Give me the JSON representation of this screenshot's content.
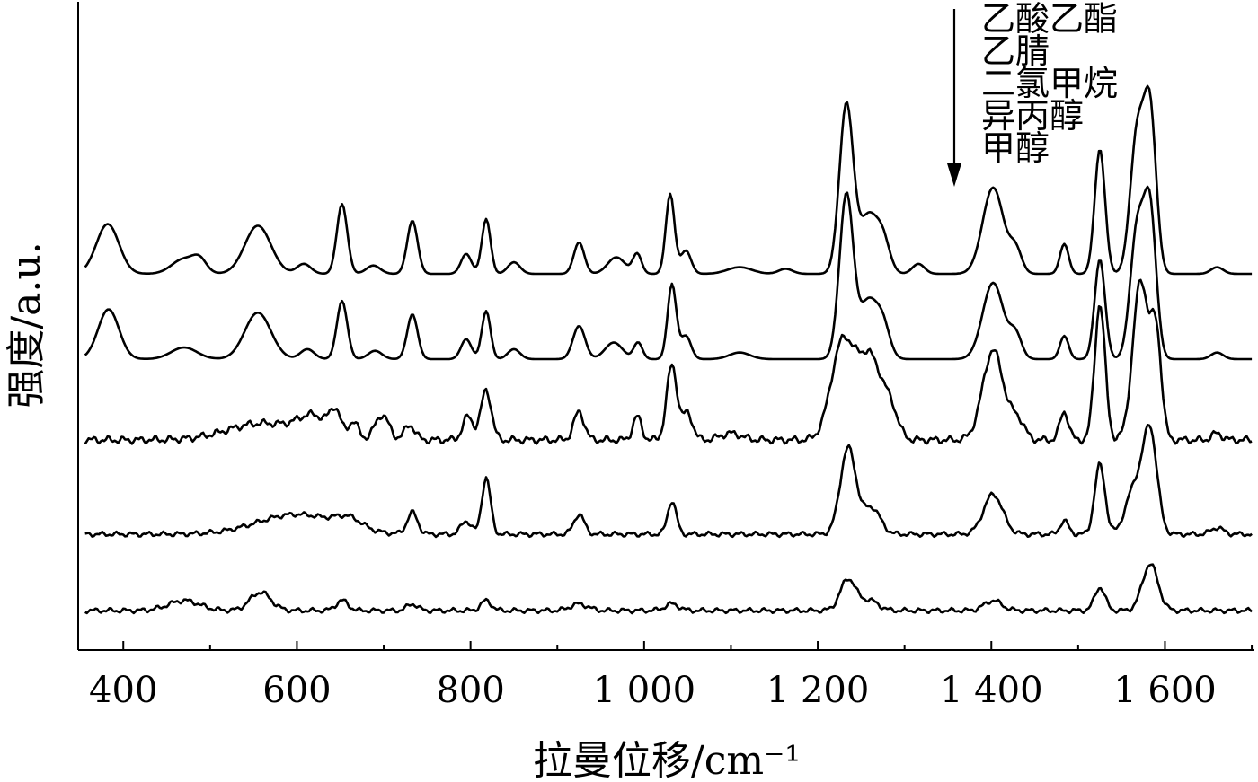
{
  "chart_data": {
    "type": "line",
    "xlabel": "拉曼位移/cm⁻¹",
    "ylabel": "强度/a.u.",
    "xlim": [
      348,
      1702
    ],
    "x_ticks": [
      400,
      600,
      800,
      1000,
      1200,
      1400,
      1600
    ],
    "x_tick_labels": [
      "400",
      "600",
      "800",
      "1 000",
      "1 200",
      "1 400",
      "1 600"
    ],
    "x_minor_ticks": [
      500,
      700,
      900,
      1100,
      1300,
      1500,
      1700
    ],
    "grid": false,
    "legend_note": "arrow indicates order from top trace to bottom trace",
    "series": [
      {
        "name": "乙酸乙酯",
        "baseline": 0.1,
        "noise": 0.0,
        "peaks": [
          [
            382,
            0.15,
            13
          ],
          [
            470,
            0.045,
            14
          ],
          [
            488,
            0.035,
            8
          ],
          [
            555,
            0.145,
            15
          ],
          [
            608,
            0.03,
            8
          ],
          [
            652,
            0.21,
            6
          ],
          [
            688,
            0.025,
            8
          ],
          [
            733,
            0.16,
            6
          ],
          [
            795,
            0.06,
            6
          ],
          [
            818,
            0.165,
            5
          ],
          [
            850,
            0.035,
            7
          ],
          [
            925,
            0.095,
            6
          ],
          [
            968,
            0.05,
            10
          ],
          [
            992,
            0.06,
            5
          ],
          [
            1030,
            0.24,
            5
          ],
          [
            1048,
            0.07,
            6
          ],
          [
            1110,
            0.02,
            14
          ],
          [
            1163,
            0.015,
            8
          ],
          [
            1233,
            0.51,
            8
          ],
          [
            1258,
            0.17,
            10
          ],
          [
            1275,
            0.1,
            8
          ],
          [
            1316,
            0.03,
            7
          ],
          [
            1402,
            0.26,
            12
          ],
          [
            1428,
            0.07,
            7
          ],
          [
            1484,
            0.09,
            5
          ],
          [
            1525,
            0.375,
            6
          ],
          [
            1568,
            0.42,
            8
          ],
          [
            1583,
            0.47,
            7
          ],
          [
            1660,
            0.02,
            7
          ]
        ]
      },
      {
        "name": "乙腈",
        "baseline": 0.1,
        "noise": 0.0,
        "peaks": [
          [
            383,
            0.15,
            12
          ],
          [
            470,
            0.035,
            15
          ],
          [
            555,
            0.14,
            15
          ],
          [
            612,
            0.03,
            8
          ],
          [
            652,
            0.175,
            6
          ],
          [
            690,
            0.025,
            8
          ],
          [
            733,
            0.135,
            6
          ],
          [
            795,
            0.06,
            6
          ],
          [
            818,
            0.145,
            5
          ],
          [
            850,
            0.03,
            7
          ],
          [
            925,
            0.1,
            7
          ],
          [
            965,
            0.05,
            10
          ],
          [
            993,
            0.05,
            5
          ],
          [
            1032,
            0.225,
            5
          ],
          [
            1048,
            0.07,
            6
          ],
          [
            1110,
            0.02,
            12
          ],
          [
            1233,
            0.495,
            8
          ],
          [
            1258,
            0.17,
            10
          ],
          [
            1275,
            0.1,
            8
          ],
          [
            1402,
            0.23,
            12
          ],
          [
            1428,
            0.07,
            7
          ],
          [
            1484,
            0.07,
            5
          ],
          [
            1525,
            0.3,
            6
          ],
          [
            1568,
            0.39,
            8
          ],
          [
            1583,
            0.43,
            7
          ],
          [
            1660,
            0.02,
            7
          ]
        ]
      },
      {
        "name": "二氯甲烷",
        "baseline": 0.1,
        "noise": 0.012,
        "peaks": [
          [
            560,
            0.05,
            40
          ],
          [
            620,
            0.06,
            18
          ],
          [
            644,
            0.07,
            6
          ],
          [
            665,
            0.05,
            6
          ],
          [
            698,
            0.075,
            8
          ],
          [
            730,
            0.045,
            6
          ],
          [
            797,
            0.07,
            6
          ],
          [
            818,
            0.15,
            6
          ],
          [
            925,
            0.085,
            6
          ],
          [
            992,
            0.07,
            5
          ],
          [
            1032,
            0.225,
            6
          ],
          [
            1050,
            0.08,
            6
          ],
          [
            1100,
            0.02,
            12
          ],
          [
            1228,
            0.28,
            13
          ],
          [
            1260,
            0.25,
            15
          ],
          [
            1285,
            0.06,
            8
          ],
          [
            1402,
            0.27,
            12
          ],
          [
            1430,
            0.06,
            8
          ],
          [
            1484,
            0.085,
            5
          ],
          [
            1525,
            0.41,
            6
          ],
          [
            1572,
            0.48,
            9
          ],
          [
            1590,
            0.3,
            6
          ],
          [
            1660,
            0.02,
            6
          ]
        ]
      },
      {
        "name": "异丙醇",
        "baseline": 0.1,
        "noise": 0.008,
        "peaks": [
          [
            600,
            0.06,
            45
          ],
          [
            660,
            0.03,
            15
          ],
          [
            733,
            0.065,
            6
          ],
          [
            795,
            0.04,
            6
          ],
          [
            818,
            0.17,
            5
          ],
          [
            925,
            0.06,
            6
          ],
          [
            1032,
            0.1,
            5
          ],
          [
            1235,
            0.26,
            9
          ],
          [
            1262,
            0.08,
            10
          ],
          [
            1402,
            0.12,
            11
          ],
          [
            1484,
            0.04,
            5
          ],
          [
            1525,
            0.21,
            6
          ],
          [
            1565,
            0.14,
            10
          ],
          [
            1583,
            0.3,
            8
          ],
          [
            1660,
            0.02,
            7
          ]
        ]
      },
      {
        "name": "甲醇",
        "baseline": 0.1,
        "noise": 0.008,
        "peaks": [
          [
            470,
            0.03,
            18
          ],
          [
            558,
            0.055,
            12
          ],
          [
            652,
            0.03,
            7
          ],
          [
            733,
            0.02,
            6
          ],
          [
            818,
            0.03,
            6
          ],
          [
            925,
            0.02,
            10
          ],
          [
            1032,
            0.02,
            8
          ],
          [
            1235,
            0.095,
            9
          ],
          [
            1260,
            0.03,
            10
          ],
          [
            1402,
            0.03,
            10
          ],
          [
            1525,
            0.07,
            6
          ],
          [
            1583,
            0.14,
            9
          ]
        ]
      }
    ]
  }
}
